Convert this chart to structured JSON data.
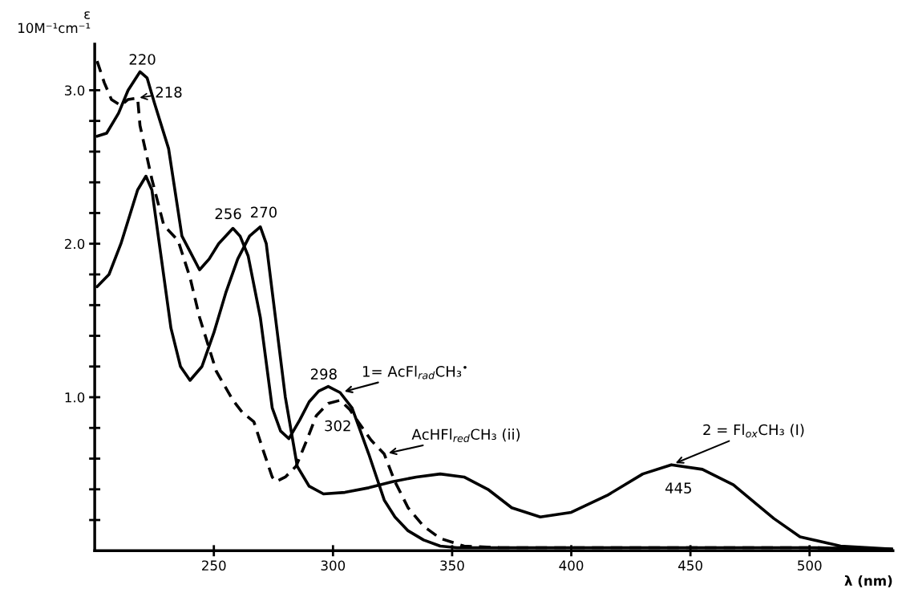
{
  "chart_data": {
    "type": "line",
    "xlabel": "λ (nm)",
    "ylabel": "ε\n10M⁻¹cm⁻¹",
    "xlim": [
      200,
      535
    ],
    "ylim": [
      0,
      3.3
    ],
    "xticks": [
      250,
      300,
      350,
      400,
      450,
      500
    ],
    "yticks": [
      {
        "value": 0.2,
        "label": null
      },
      {
        "value": 0.4,
        "label": null
      },
      {
        "value": 0.6,
        "label": null
      },
      {
        "value": 0.8,
        "label": null
      },
      {
        "value": 1,
        "label": "1.0"
      },
      {
        "value": 1.2,
        "label": null
      },
      {
        "value": 1.4,
        "label": null
      },
      {
        "value": 1.6,
        "label": null
      },
      {
        "value": 1.8,
        "label": null
      },
      {
        "value": 2,
        "label": "2.0"
      },
      {
        "value": 2.2,
        "label": null
      },
      {
        "value": 2.4,
        "label": null
      },
      {
        "value": 2.6,
        "label": null
      },
      {
        "value": 2.8,
        "label": null
      },
      {
        "value": 3,
        "label": "3.0"
      }
    ],
    "grid": false,
    "legend": false,
    "marker": "none",
    "series": [
      {
        "name": "1= AcFl$_{rad}$CH₃$^{•}$",
        "color": "#000000",
        "line_style": "solid",
        "x": [
          201,
          205,
          210,
          214,
          219,
          222,
          225,
          231,
          236.6,
          240,
          244,
          248,
          252,
          258,
          261,
          264.4,
          269.5,
          274.5,
          278,
          281.5,
          286,
          290,
          294,
          298,
          303,
          308,
          315,
          321.5,
          326,
          331.5,
          338,
          345,
          352,
          360,
          400,
          450,
          500,
          535
        ],
        "values": [
          2.7,
          2.72,
          2.85,
          3.0,
          3.12,
          3.08,
          2.92,
          2.62,
          2.05,
          1.95,
          1.83,
          1.9,
          2.0,
          2.1,
          2.05,
          1.92,
          1.52,
          0.93,
          0.78,
          0.73,
          0.85,
          0.97,
          1.04,
          1.07,
          1.03,
          0.93,
          0.63,
          0.33,
          0.22,
          0.13,
          0.07,
          0.03,
          0.02,
          0.02,
          0.02,
          0.02,
          0.02,
          0.01
        ]
      },
      {
        "name": "AcHFl$_{red}$CH₃ (ii)",
        "color": "#000000",
        "line_style": "dashed",
        "x": [
          201,
          204,
          207,
          211,
          214,
          218,
          219,
          224,
          229,
          235,
          240,
          244,
          251,
          258,
          262,
          266.8,
          271,
          274.5,
          276,
          280,
          284.5,
          289,
          293,
          298,
          303,
          307,
          311,
          316,
          321.5,
          326,
          331.5,
          338,
          345,
          355,
          370,
          400,
          450,
          500,
          535
        ],
        "values": [
          3.19,
          3.05,
          2.94,
          2.9,
          2.94,
          2.95,
          2.77,
          2.42,
          2.12,
          2.02,
          1.78,
          1.52,
          1.17,
          0.98,
          0.9,
          0.84,
          0.64,
          0.48,
          0.45,
          0.48,
          0.55,
          0.72,
          0.88,
          0.96,
          0.98,
          0.92,
          0.83,
          0.72,
          0.63,
          0.45,
          0.28,
          0.16,
          0.08,
          0.03,
          0.02,
          0.02,
          0.02,
          0.02,
          0.01
        ]
      },
      {
        "name": "2 = Fl$_{ox}$CH₃ (I)",
        "color": "#000000",
        "line_style": "solid",
        "x": [
          201,
          206,
          211,
          215,
          218,
          221.5,
          224,
          228,
          232,
          236,
          240,
          245,
          250,
          255,
          260,
          265,
          269.5,
          272,
          276,
          280,
          285,
          290,
          296,
          305,
          315,
          325,
          335,
          345,
          355,
          365,
          375,
          387,
          400,
          415,
          430,
          442,
          455,
          468,
          478,
          485,
          496,
          513,
          535
        ],
        "values": [
          1.72,
          1.8,
          2.0,
          2.2,
          2.35,
          2.44,
          2.35,
          1.9,
          1.45,
          1.2,
          1.11,
          1.2,
          1.42,
          1.68,
          1.9,
          2.05,
          2.11,
          2.0,
          1.5,
          1.0,
          0.55,
          0.42,
          0.37,
          0.38,
          0.41,
          0.45,
          0.48,
          0.5,
          0.48,
          0.4,
          0.28,
          0.22,
          0.25,
          0.36,
          0.5,
          0.56,
          0.53,
          0.43,
          0.3,
          0.21,
          0.09,
          0.03,
          0.01
        ]
      }
    ],
    "annotations": [
      {
        "text": "220",
        "x": 220,
        "y": 3.12
      },
      {
        "text": "218",
        "x": 218,
        "y": 2.95
      },
      {
        "text": "256",
        "x": 256,
        "y": 2.1
      },
      {
        "text": "270",
        "x": 270,
        "y": 2.11
      },
      {
        "text": "298",
        "x": 298,
        "y": 1.07
      },
      {
        "text": "302",
        "x": 302,
        "y": 0.98
      },
      {
        "text": "445",
        "x": 445,
        "y": 0.56
      }
    ]
  }
}
